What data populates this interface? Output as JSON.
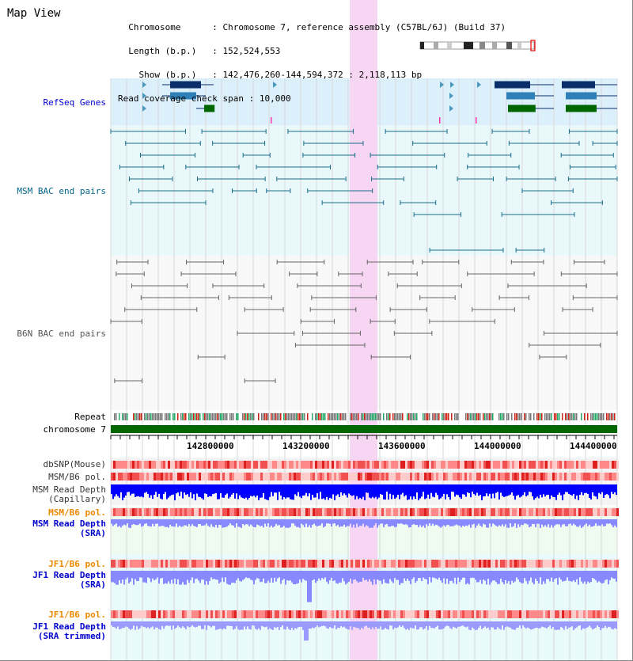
{
  "title": "Map View",
  "header": {
    "chromosome_label": "Chromosome",
    "chromosome_value": "Chromosome 7, reference assembly (C57BL/6J) (Build 37)",
    "length_label": "Length (b.p.)",
    "length_value": "152,524,553",
    "show_label": "Show (b.p.)",
    "show_value": "142,476,260-144,594,372 : 2,118,113 bp",
    "coverage_label": "Read coverage check span",
    "coverage_value": "10,000"
  },
  "tracks": {
    "refseq": "RefSeq Genes",
    "msm_bac": "MSM BAC end pairs",
    "b6n_bac": "B6N BAC end pairs",
    "repeat": "Repeat",
    "chromosome": "chromosome 7",
    "dbsnp": "dbSNP(Mouse)",
    "msm_b6_pol_1": "MSM/B6 pol.",
    "msm_read_depth_cap_1": "MSM Read Depth",
    "msm_read_depth_cap_2": "(Capillary)",
    "msm_b6_pol_2": "MSM/B6 pol.",
    "msm_read_depth_sra_1": "MSM Read Depth",
    "msm_read_depth_sra_2": "(SRA)",
    "jf1_b6_pol_1": "JF1/B6 pol.",
    "jf1_read_depth_sra_1": "JF1 Read Depth",
    "jf1_read_depth_sra_2": "(SRA)",
    "jf1_b6_pol_2": "JF1/B6 pol.",
    "jf1_read_depth_trim_1": "JF1 Read Depth",
    "jf1_read_depth_trim_2": "(SRA trimmed)"
  },
  "axis": {
    "ticks": [
      "142800000",
      "143200000",
      "143600000",
      "144000000",
      "144400000"
    ]
  },
  "colors": {
    "refseq_label": "#0000cc",
    "msm_label": "#006688",
    "b6n_label": "#555555",
    "pol_orange": "#ee8800",
    "sra_blue": "#0000cc",
    "highlight": "#f7d6f3",
    "chromosome_bar": "#006600",
    "depth_capillary": "#0000ff",
    "depth_sra": "#8888ff"
  }
}
